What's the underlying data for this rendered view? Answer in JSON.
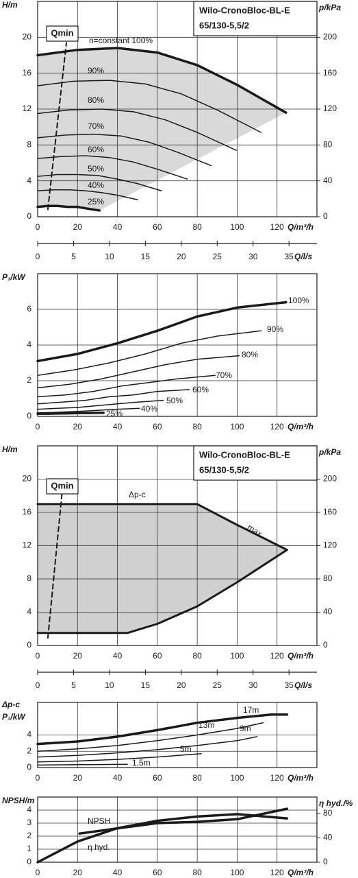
{
  "chart_data": [
    {
      "type": "line",
      "title": "Wilo-CronoBloc-BL-E",
      "subtitle": "65/130-5,5/2",
      "annotation": "Qmin",
      "xlabel": "Q/m³/h",
      "ylabel": [
        "H/m"
      ],
      "y2label": "p/kPa",
      "x2label": "Q/l/s",
      "xlim": [
        0,
        140
      ],
      "xticks": [
        0,
        20,
        40,
        60,
        80,
        100,
        120
      ],
      "ylim": [
        0,
        24
      ],
      "yticks": [
        0,
        4,
        8,
        12,
        16,
        20
      ],
      "y2lim": [
        0,
        240
      ],
      "y2ticks": [
        0,
        40,
        80,
        120,
        160,
        200
      ],
      "x2lim": [
        0,
        38.89
      ],
      "x2ticks": [
        0,
        5,
        10,
        15,
        20,
        25,
        30,
        35
      ],
      "grid": true,
      "area": {
        "color": "#d9d9d9",
        "series": [
          0,
          7
        ]
      },
      "series": [
        {
          "name": "n=constant 100%",
          "color": "#1a1a1a",
          "line_width": 3.5,
          "x": [
            0,
            20,
            40,
            60,
            80,
            100,
            124.5
          ],
          "values": [
            18,
            18.6,
            18.8,
            18.3,
            16.9,
            14.7,
            11.6
          ]
        },
        {
          "name": "90%",
          "color": "#1a1a1a",
          "line_width": 1.5,
          "x": [
            0,
            18,
            36,
            54,
            72,
            90,
            112
          ],
          "values": [
            14.6,
            15.1,
            15.2,
            14.8,
            13.7,
            11.9,
            9.4
          ]
        },
        {
          "name": "80%",
          "color": "#1a1a1a",
          "line_width": 1.5,
          "x": [
            0,
            16,
            32,
            48,
            64,
            80,
            99.6
          ],
          "values": [
            11.5,
            11.9,
            12.0,
            11.7,
            10.8,
            9.4,
            7.4
          ]
        },
        {
          "name": "70%",
          "color": "#1a1a1a",
          "line_width": 1.5,
          "x": [
            0,
            14,
            28,
            42,
            56,
            70,
            87
          ],
          "values": [
            8.8,
            9.1,
            9.2,
            9.0,
            8.3,
            7.2,
            5.7
          ]
        },
        {
          "name": "60%",
          "color": "#1a1a1a",
          "line_width": 1.5,
          "x": [
            0,
            12,
            24,
            36,
            48,
            60,
            75
          ],
          "values": [
            6.5,
            6.7,
            6.8,
            6.6,
            6.1,
            5.3,
            4.2
          ]
        },
        {
          "name": "50%",
          "color": "#1a1a1a",
          "line_width": 1.5,
          "x": [
            0,
            10,
            20,
            30,
            40,
            50,
            62
          ],
          "values": [
            4.5,
            4.7,
            4.7,
            4.6,
            4.2,
            3.7,
            2.9
          ]
        },
        {
          "name": "40%",
          "color": "#1a1a1a",
          "line_width": 1.5,
          "x": [
            0,
            8,
            16,
            24,
            32,
            40,
            50
          ],
          "values": [
            2.9,
            3.0,
            3.0,
            2.9,
            2.7,
            2.4,
            1.9
          ]
        },
        {
          "name": "25%",
          "color": "#1a1a1a",
          "line_width": 3.5,
          "x": [
            0,
            5,
            10,
            15,
            20,
            25,
            31
          ],
          "values": [
            1.1,
            1.2,
            1.2,
            1.1,
            1.1,
            0.9,
            0.7
          ]
        },
        {
          "color": "#1a1a1a",
          "line_width": 2,
          "dash": true,
          "x": [
            5.1,
            14.4
          ],
          "values": [
            0.8,
            19.4
          ]
        }
      ]
    },
    {
      "type": "line",
      "xlabel": "Q/m³/h",
      "ylabel": [
        "P₁/kW"
      ],
      "xlim": [
        0,
        140
      ],
      "xticks": [
        0,
        20,
        40,
        60,
        80,
        100,
        120
      ],
      "ylim": [
        0,
        8
      ],
      "yticks": [
        0,
        2,
        4,
        6
      ],
      "grid": true,
      "series": [
        {
          "name": "100%",
          "color": "#1a1a1a",
          "line_width": 3.5,
          "x": [
            0,
            20,
            40,
            60,
            80,
            100,
            124.5
          ],
          "values": [
            3.1,
            3.5,
            4.1,
            4.8,
            5.6,
            6.1,
            6.4
          ]
        },
        {
          "name": "90%",
          "color": "#1a1a1a",
          "line_width": 1.5,
          "x": [
            0,
            18,
            36,
            54,
            72,
            90,
            112
          ],
          "values": [
            2.3,
            2.6,
            3.0,
            3.5,
            4.1,
            4.5,
            4.8
          ]
        },
        {
          "name": "80%",
          "color": "#1a1a1a",
          "line_width": 1.5,
          "x": [
            0,
            16,
            32,
            48,
            64,
            80,
            101
          ],
          "values": [
            1.6,
            1.8,
            2.1,
            2.5,
            2.9,
            3.2,
            3.4
          ]
        },
        {
          "name": "70%",
          "color": "#1a1a1a",
          "line_width": 1.5,
          "x": [
            0,
            14,
            28,
            42,
            56,
            70,
            89
          ],
          "values": [
            1.1,
            1.2,
            1.4,
            1.7,
            1.9,
            2.1,
            2.3
          ]
        },
        {
          "name": "60%",
          "color": "#1a1a1a",
          "line_width": 1.5,
          "x": [
            0,
            12,
            24,
            36,
            48,
            60,
            76
          ],
          "values": [
            0.7,
            0.8,
            0.9,
            1.1,
            1.2,
            1.4,
            1.5
          ]
        },
        {
          "name": "50%",
          "color": "#1a1a1a",
          "line_width": 1.5,
          "x": [
            0,
            10,
            20,
            30,
            40,
            50,
            63
          ],
          "values": [
            0.4,
            0.45,
            0.5,
            0.6,
            0.7,
            0.8,
            0.9
          ]
        },
        {
          "name": "40%",
          "color": "#1a1a1a",
          "line_width": 1.5,
          "x": [
            0,
            8,
            16,
            24,
            32,
            40,
            51
          ],
          "values": [
            0.2,
            0.22,
            0.26,
            0.3,
            0.35,
            0.4,
            0.45
          ]
        },
        {
          "name": "25%",
          "color": "#1a1a1a",
          "line_width": 3.5,
          "x": [
            0,
            5,
            10,
            15,
            20,
            25,
            33
          ],
          "values": [
            0.15,
            0.15,
            0.16,
            0.17,
            0.18,
            0.19,
            0.2
          ]
        }
      ]
    },
    {
      "type": "line",
      "title": "Wilo-CronoBloc-BL-E",
      "subtitle": "65/130-5,5/2",
      "annotation": "Qmin",
      "xlabel": "Q/m³/h",
      "ylabel": [
        "H/m"
      ],
      "y2label": "p/kPa",
      "x2label": "Q/l/s",
      "xlim": [
        0,
        140
      ],
      "xticks": [
        0,
        20,
        40,
        60,
        80,
        100,
        120
      ],
      "ylim": [
        0,
        24
      ],
      "yticks": [
        0,
        4,
        8,
        12,
        16,
        20
      ],
      "y2lim": [
        0,
        240
      ],
      "y2ticks": [
        0,
        40,
        80,
        120,
        160,
        200
      ],
      "x2lim": [
        0,
        38.89
      ],
      "x2ticks": [
        0,
        5,
        10,
        15,
        20,
        25,
        30,
        35
      ],
      "grid": true,
      "area": {
        "color": "#d0d0d0",
        "series": [
          0,
          1,
          2
        ]
      },
      "series": [
        {
          "name": "Δp-c",
          "color": "#1a1a1a",
          "line_width": 3,
          "x": [
            0,
            80
          ],
          "values": [
            17,
            17
          ]
        },
        {
          "name": "max.",
          "color": "#1a1a1a",
          "line_width": 3,
          "x": [
            80,
            100,
            125
          ],
          "values": [
            17,
            14.5,
            11.5
          ]
        },
        {
          "color": "#1a1a1a",
          "line_width": 3,
          "x": [
            125,
            100,
            80,
            60,
            45,
            0
          ],
          "values": [
            11.5,
            7.6,
            4.7,
            2.6,
            1.5,
            1.5
          ]
        },
        {
          "color": "#1a1a1a",
          "line_width": 2,
          "dash": true,
          "x": [
            5.1,
            12.7
          ],
          "values": [
            0.9,
            19.5
          ]
        }
      ]
    },
    {
      "type": "line",
      "xlabel": "Q/m³/h",
      "ylabel": [
        "Δp-c",
        "P₁/kW"
      ],
      "xlim": [
        0,
        140
      ],
      "xticks": [
        0,
        20,
        40,
        60,
        80,
        100,
        120
      ],
      "ylim": [
        0,
        8
      ],
      "yticks": [
        0,
        2,
        4
      ],
      "grid": true,
      "series": [
        {
          "name": "17m",
          "color": "#1a1a1a",
          "line_width": 3.5,
          "x": [
            0,
            20,
            40,
            60,
            80,
            100,
            117,
            125
          ],
          "values": [
            2.9,
            3.2,
            3.8,
            4.6,
            5.5,
            6.1,
            6.5,
            6.5
          ]
        },
        {
          "name": "13m",
          "color": "#1a1a1a",
          "line_width": 1.5,
          "x": [
            0,
            20,
            40,
            60,
            80,
            100,
            113
          ],
          "values": [
            2.0,
            2.3,
            2.7,
            3.3,
            4.0,
            4.8,
            5.5
          ]
        },
        {
          "name": "9m",
          "color": "#1a1a1a",
          "line_width": 1.5,
          "x": [
            0,
            20,
            40,
            60,
            80,
            100,
            110
          ],
          "values": [
            1.3,
            1.5,
            1.8,
            2.2,
            2.7,
            3.3,
            3.8
          ]
        },
        {
          "name": "5m",
          "color": "#1a1a1a",
          "line_width": 1.5,
          "x": [
            0,
            20,
            40,
            60,
            82
          ],
          "values": [
            0.7,
            0.8,
            1.0,
            1.3,
            1.7
          ]
        },
        {
          "name": "1,5m",
          "color": "#1a1a1a",
          "line_width": 1.5,
          "x": [
            0,
            20,
            45
          ],
          "values": [
            0.3,
            0.35,
            0.4
          ]
        }
      ]
    },
    {
      "type": "line",
      "xlabel": "Q/m³/h",
      "ylabel": [
        "NPSH/m"
      ],
      "y2label": "η hyd./%",
      "xlim": [
        0,
        140
      ],
      "xticks": [
        0,
        20,
        40,
        60,
        80,
        100,
        120
      ],
      "ylim": [
        0,
        5
      ],
      "yticks": [
        0,
        1,
        2,
        3,
        4
      ],
      "y2lim": [
        0,
        107
      ],
      "y2ticks": [
        0,
        40,
        80
      ],
      "grid": true,
      "series": [
        {
          "name": "NPSH",
          "color": "#1a1a1a",
          "line_width": 3.5,
          "x": [
            21,
            40,
            60,
            80,
            100,
            125
          ],
          "values": [
            2.2,
            2.6,
            3.0,
            3.1,
            3.3,
            4.1
          ]
        },
        {
          "name": "η hyd.",
          "color": "#1a1a1a",
          "line_width": 3.5,
          "axis": "y2",
          "x": [
            0,
            20,
            40,
            60,
            80,
            100,
            125
          ],
          "values": [
            0,
            34,
            56,
            68,
            75,
            79,
            72
          ]
        }
      ]
    }
  ]
}
